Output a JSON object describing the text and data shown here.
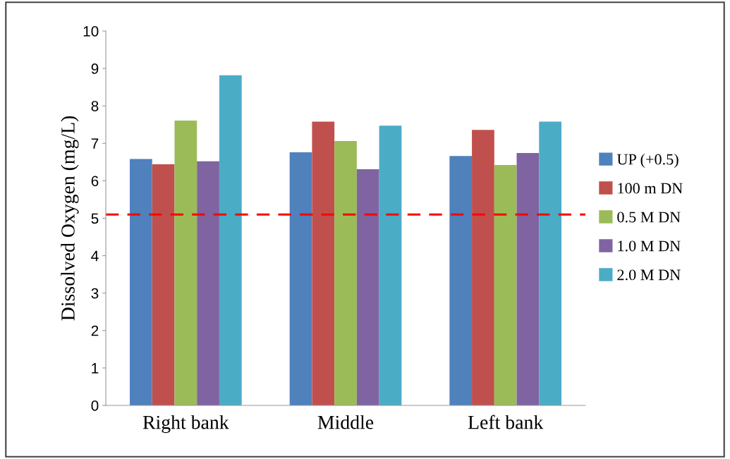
{
  "chart_data": {
    "type": "bar",
    "ylabel": "Dissolved Oxygen (mg/L)",
    "categories": [
      "Right bank",
      "Middle",
      "Left bank"
    ],
    "series": [
      {
        "name": "UP (+0.5)",
        "color": "#4f81bd",
        "values": [
          6.58,
          6.76,
          6.66
        ]
      },
      {
        "name": "100 m DN",
        "color": "#c0504d",
        "values": [
          6.44,
          7.58,
          7.36
        ]
      },
      {
        "name": "0.5 M DN",
        "color": "#9bbb59",
        "values": [
          7.61,
          7.06,
          6.42
        ]
      },
      {
        "name": "1.0 M DN",
        "color": "#8064a2",
        "values": [
          6.52,
          6.31,
          6.74
        ]
      },
      {
        "name": "2.0 M DN",
        "color": "#4bacc6",
        "values": [
          8.82,
          7.47,
          7.58
        ]
      }
    ],
    "ylim": [
      0,
      10
    ],
    "yticks": [
      0,
      1,
      2,
      3,
      4,
      5,
      6,
      7,
      8,
      9,
      10
    ],
    "ref_lines": [
      {
        "axis": "y",
        "value": 5.1,
        "color": "#ff0000",
        "line_style": "dashed"
      }
    ],
    "grid": false,
    "legend": "right"
  }
}
